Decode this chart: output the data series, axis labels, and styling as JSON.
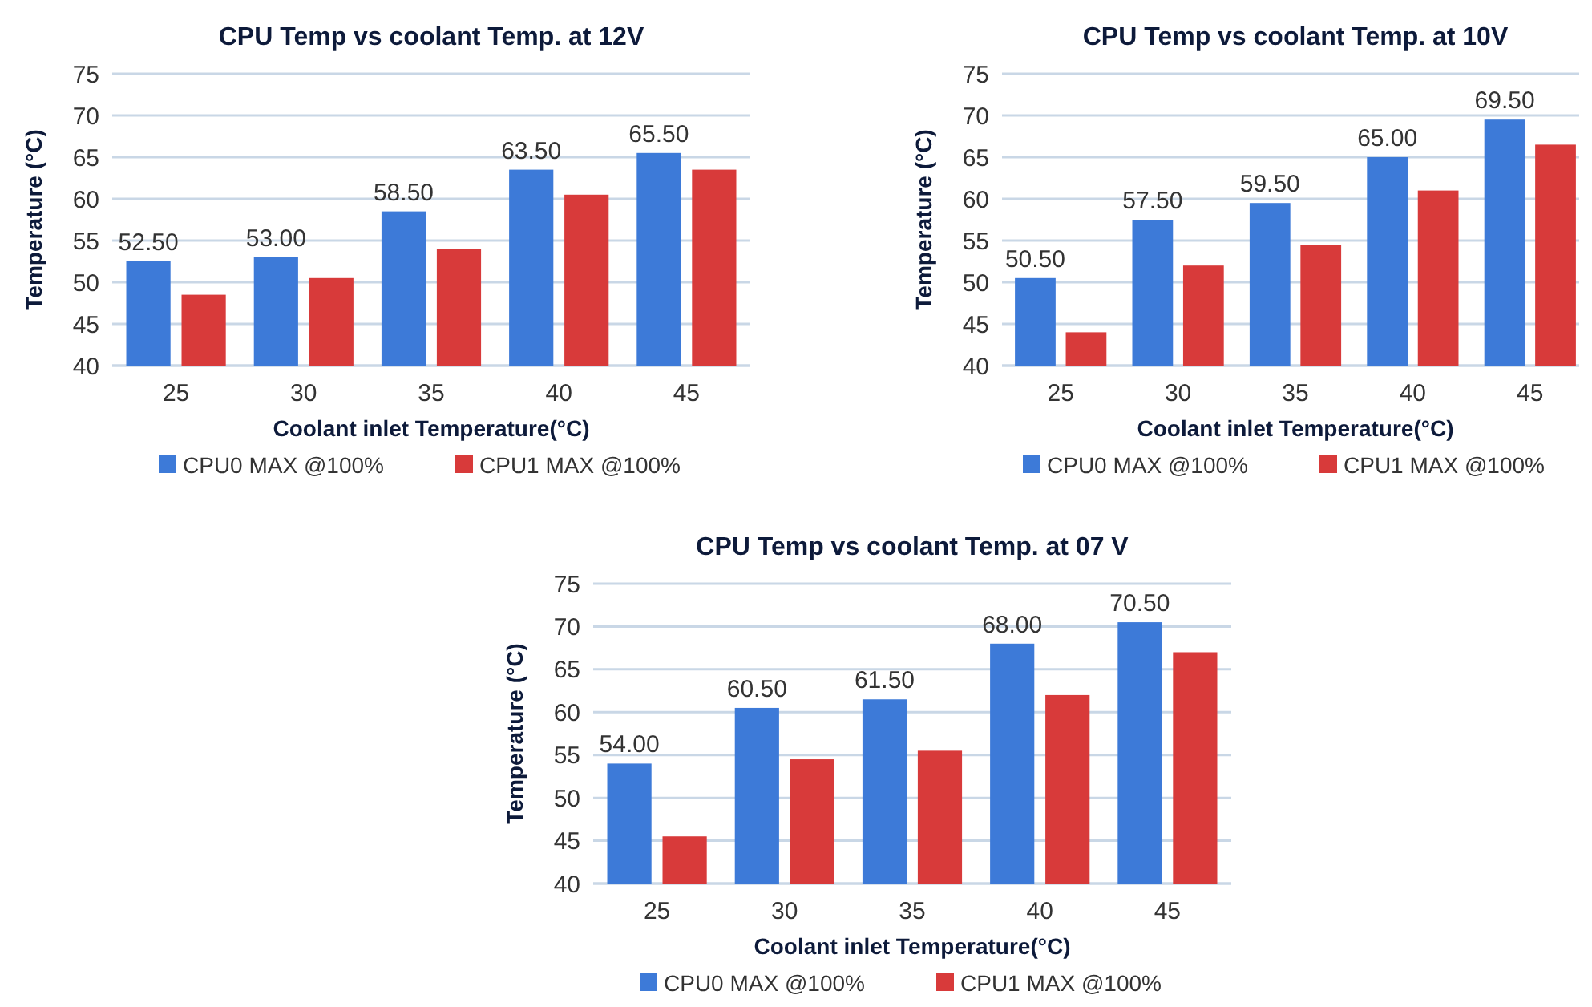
{
  "chart_data": [
    {
      "type": "bar",
      "title": "CPU Temp vs coolant Temp. at  12V",
      "xlabel": "Coolant inlet Temperature(°C)",
      "ylabel": "Temperature (°C)",
      "categories": [
        "25",
        "30",
        "35",
        "40",
        "45"
      ],
      "series": [
        {
          "name": "CPU0 MAX @100%",
          "color": "#3d7ad8",
          "values": [
            52.5,
            53,
            58.5,
            63.5,
            65.5
          ],
          "value_labels": [
            "52.50",
            "53.00",
            "58.50",
            "63.50",
            "65.50"
          ]
        },
        {
          "name": "CPU1 MAX @100%",
          "color": "#d83a3a",
          "values": [
            48.5,
            50.5,
            54,
            60.5,
            63.5
          ]
        }
      ],
      "ylim": [
        40,
        75
      ],
      "yticks": [
        40,
        45,
        50,
        55,
        60,
        65,
        70,
        75
      ],
      "grid": "y",
      "legend": "bottom"
    },
    {
      "type": "bar",
      "title": "CPU Temp vs coolant Temp. at 10V",
      "xlabel": "Coolant inlet Temperature(°C)",
      "ylabel": "Temperature (°C)",
      "categories": [
        "25",
        "30",
        "35",
        "40",
        "45"
      ],
      "series": [
        {
          "name": "CPU0 MAX @100%",
          "color": "#3d7ad8",
          "values": [
            50.5,
            57.5,
            59.5,
            65,
            69.5
          ],
          "value_labels": [
            "50.50",
            "57.50",
            "59.50",
            "65.00",
            "69.50"
          ]
        },
        {
          "name": "CPU1 MAX @100%",
          "color": "#d83a3a",
          "values": [
            44,
            52,
            54.5,
            61,
            66.5
          ]
        }
      ],
      "ylim": [
        40,
        75
      ],
      "yticks": [
        40,
        45,
        50,
        55,
        60,
        65,
        70,
        75
      ],
      "grid": "y",
      "legend": "bottom"
    },
    {
      "type": "bar",
      "title": "CPU Temp vs coolant Temp. at 07 V",
      "xlabel": "Coolant inlet Temperature(°C)",
      "ylabel": "Temperature (°C)",
      "categories": [
        "25",
        "30",
        "35",
        "40",
        "45"
      ],
      "series": [
        {
          "name": "CPU0 MAX @100%",
          "color": "#3d7ad8",
          "values": [
            54,
            60.5,
            61.5,
            68,
            70.5
          ],
          "value_labels": [
            "54.00",
            "60.50",
            "61.50",
            "68.00",
            "70.50"
          ]
        },
        {
          "name": "CPU1 MAX @100%",
          "color": "#d83a3a",
          "values": [
            45.5,
            54.5,
            55.5,
            62,
            67
          ]
        }
      ],
      "ylim": [
        40,
        75
      ],
      "yticks": [
        40,
        45,
        50,
        55,
        60,
        65,
        70,
        75
      ],
      "grid": "y",
      "legend": "bottom"
    }
  ]
}
